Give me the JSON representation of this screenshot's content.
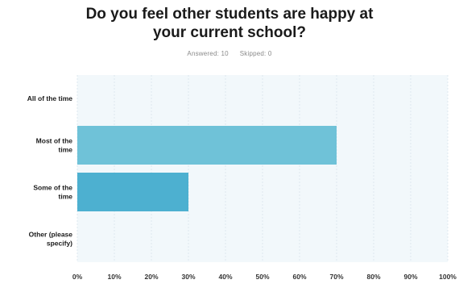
{
  "title_lines": [
    "Do you feel other students are happy at",
    "your current school?"
  ],
  "stats": {
    "answered": "Answered: 10",
    "skipped": "Skipped: 0"
  },
  "chart_data": {
    "type": "bar",
    "orientation": "horizontal",
    "title": "Do you feel other students are happy at your current school?",
    "categories": [
      [
        "All of the time"
      ],
      [
        "Most of the",
        "time"
      ],
      [
        "Some of the",
        "time"
      ],
      [
        "Other (please",
        "specify)"
      ]
    ],
    "values": [
      0,
      70,
      30,
      0
    ],
    "xlim": [
      0,
      100
    ],
    "x_ticks": [
      "0%",
      "10%",
      "20%",
      "30%",
      "40%",
      "50%",
      "60%",
      "70%",
      "80%",
      "90%",
      "100%"
    ],
    "grid": "vertical-dashed",
    "colors": {
      "plot_background": "#f2f8fb",
      "grid": "#dde9ef",
      "bars": [
        "#6fc2d8",
        "#6fc2d8",
        "#4db0d0",
        "#6fc2d8"
      ]
    }
  }
}
